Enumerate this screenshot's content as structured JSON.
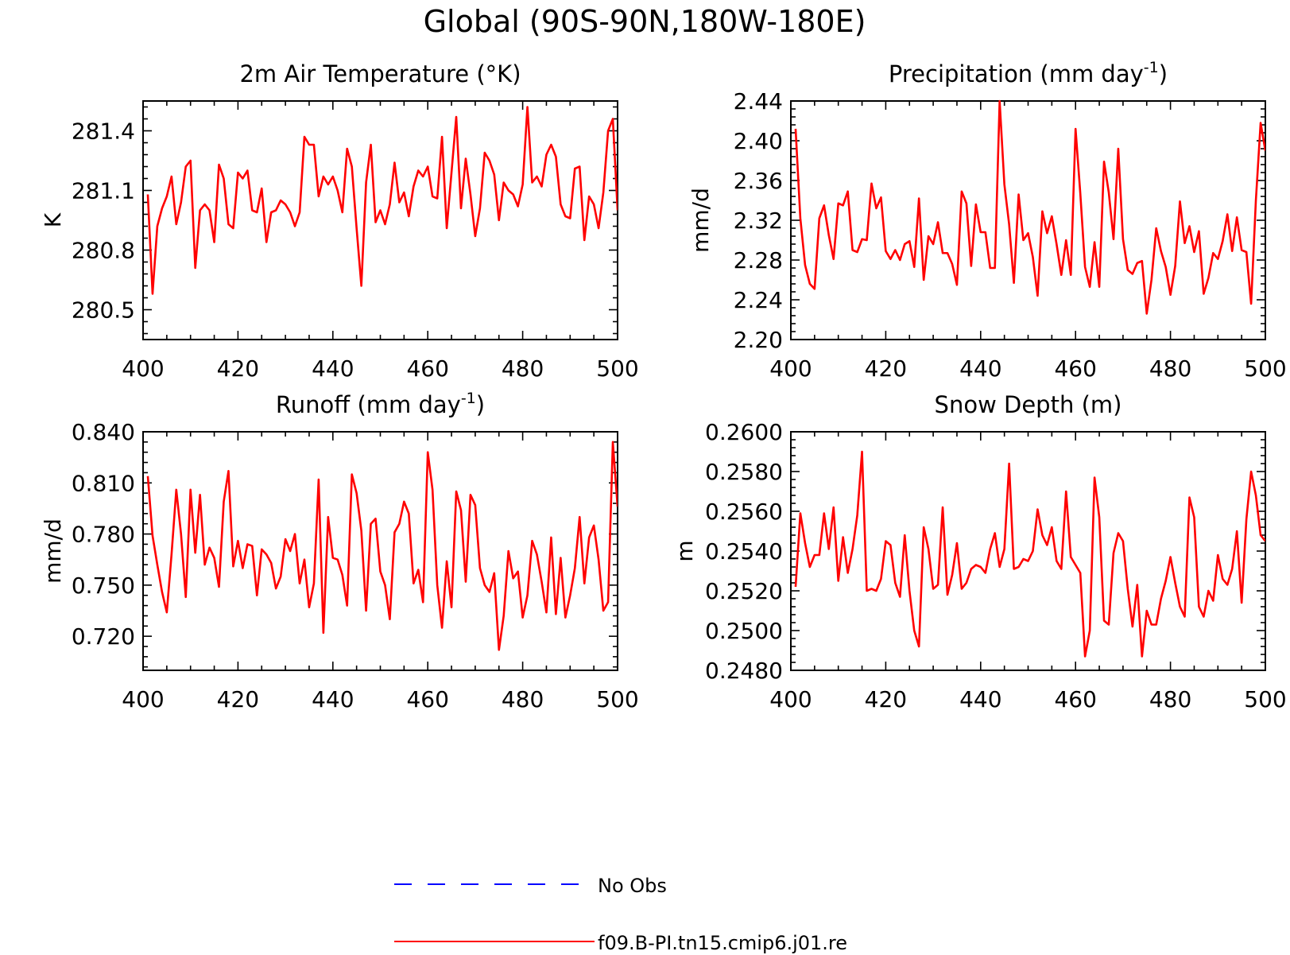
{
  "page": {
    "title": "Global (90S-90N,180W-180E)"
  },
  "legend": [
    {
      "label": "No Obs",
      "color": "#0000ff",
      "dash": true
    },
    {
      "label": "f09.B-PI.tn15.cmip6.j01.re",
      "color": "#ff0000",
      "dash": false
    }
  ],
  "colors": {
    "series": "#ff0000",
    "obs": "#0000ff",
    "axis": "#000000"
  },
  "chart_data": [
    {
      "type": "line",
      "title": "2m Air Temperature (°K)",
      "xlabel": "",
      "ylabel": "K",
      "xlim": [
        400,
        500
      ],
      "ylim": [
        280.35,
        281.55
      ],
      "xticks": [
        400,
        420,
        440,
        460,
        480,
        500
      ],
      "yticks": [
        280.5,
        280.8,
        281.1,
        281.4
      ],
      "ytick_labels": [
        "280.5",
        "280.8",
        "281.1",
        "281.4"
      ],
      "grid": false,
      "series": [
        {
          "name": "f09.B-PI.tn15.cmip6.j01.re",
          "x0": 401,
          "dx": 1,
          "values": [
            281.08,
            280.58,
            280.92,
            281.01,
            281.07,
            281.17,
            280.93,
            281.04,
            281.22,
            281.25,
            280.71,
            281.0,
            281.03,
            281.0,
            280.84,
            281.23,
            281.16,
            280.93,
            280.91,
            281.19,
            281.16,
            281.2,
            281.0,
            280.99,
            281.11,
            280.84,
            280.99,
            281.0,
            281.05,
            281.03,
            280.99,
            280.92,
            280.99,
            281.37,
            281.33,
            281.33,
            281.07,
            281.17,
            281.13,
            281.17,
            281.1,
            280.99,
            281.31,
            281.22,
            280.91,
            280.62,
            281.14,
            281.33,
            280.94,
            281.0,
            280.93,
            281.03,
            281.24,
            281.04,
            281.09,
            280.97,
            281.12,
            281.2,
            281.17,
            281.22,
            281.07,
            281.06,
            281.37,
            280.91,
            281.19,
            281.47,
            281.01,
            281.26,
            281.08,
            280.87,
            281.01,
            281.29,
            281.25,
            281.18,
            280.95,
            281.14,
            281.1,
            281.08,
            281.02,
            281.13,
            281.52,
            281.14,
            281.17,
            281.12,
            281.28,
            281.33,
            281.27,
            281.03,
            280.97,
            280.96,
            281.21,
            281.22,
            280.85,
            281.07,
            281.03,
            280.91,
            281.09,
            281.4,
            281.46,
            281.0
          ]
        }
      ]
    },
    {
      "type": "line",
      "title": "Precipitation (mm day",
      "title_sup": "-1",
      "title_close": ")",
      "xlabel": "",
      "ylabel": "mm/d",
      "xlim": [
        400,
        500
      ],
      "ylim": [
        2.2,
        2.44
      ],
      "xticks": [
        400,
        420,
        440,
        460,
        480,
        500
      ],
      "yticks": [
        2.2,
        2.24,
        2.28,
        2.32,
        2.36,
        2.4,
        2.44
      ],
      "ytick_labels": [
        "2.20",
        "2.24",
        "2.28",
        "2.32",
        "2.36",
        "2.40",
        "2.44"
      ],
      "grid": false,
      "series": [
        {
          "name": "f09.B-PI.tn15.cmip6.j01.re",
          "x0": 401,
          "dx": 1,
          "values": [
            2.412,
            2.322,
            2.275,
            2.256,
            2.251,
            2.322,
            2.335,
            2.305,
            2.281,
            2.337,
            2.335,
            2.349,
            2.29,
            2.288,
            2.301,
            2.3,
            2.357,
            2.332,
            2.343,
            2.289,
            2.281,
            2.29,
            2.28,
            2.296,
            2.299,
            2.273,
            2.342,
            2.26,
            2.304,
            2.296,
            2.318,
            2.287,
            2.287,
            2.276,
            2.255,
            2.349,
            2.337,
            2.274,
            2.336,
            2.308,
            2.308,
            2.272,
            2.272,
            2.44,
            2.356,
            2.316,
            2.257,
            2.346,
            2.3,
            2.307,
            2.283,
            2.244,
            2.329,
            2.307,
            2.324,
            2.296,
            2.265,
            2.3,
            2.265,
            2.412,
            2.347,
            2.273,
            2.253,
            2.298,
            2.253,
            2.379,
            2.348,
            2.301,
            2.392,
            2.301,
            2.27,
            2.266,
            2.277,
            2.279,
            2.226,
            2.26,
            2.312,
            2.289,
            2.273,
            2.245,
            2.274,
            2.339,
            2.297,
            2.314,
            2.288,
            2.309,
            2.246,
            2.262,
            2.287,
            2.281,
            2.299,
            2.326,
            2.289,
            2.323,
            2.29,
            2.288,
            2.236,
            2.34,
            2.418,
            2.39
          ]
        }
      ]
    },
    {
      "type": "line",
      "title": "Runoff (mm day",
      "title_sup": "-1",
      "title_close": ")",
      "xlabel": "",
      "ylabel": "mm/d",
      "xlim": [
        400,
        500
      ],
      "ylim": [
        0.7,
        0.84
      ],
      "xticks": [
        400,
        420,
        440,
        460,
        480,
        500
      ],
      "yticks": [
        0.72,
        0.75,
        0.78,
        0.81,
        0.84
      ],
      "ytick_labels": [
        "0.720",
        "0.750",
        "0.780",
        "0.810",
        "0.840"
      ],
      "grid": false,
      "series": [
        {
          "name": "f09.B-PI.tn15.cmip6.j01.re",
          "x0": 401,
          "dx": 1,
          "values": [
            0.814,
            0.779,
            0.762,
            0.746,
            0.734,
            0.768,
            0.806,
            0.78,
            0.743,
            0.806,
            0.769,
            0.803,
            0.762,
            0.772,
            0.766,
            0.749,
            0.799,
            0.817,
            0.761,
            0.776,
            0.76,
            0.774,
            0.773,
            0.744,
            0.771,
            0.768,
            0.763,
            0.748,
            0.755,
            0.777,
            0.77,
            0.78,
            0.751,
            0.765,
            0.737,
            0.751,
            0.812,
            0.722,
            0.79,
            0.766,
            0.765,
            0.756,
            0.738,
            0.815,
            0.804,
            0.782,
            0.735,
            0.786,
            0.789,
            0.758,
            0.75,
            0.73,
            0.781,
            0.786,
            0.799,
            0.792,
            0.751,
            0.759,
            0.74,
            0.828,
            0.806,
            0.75,
            0.725,
            0.764,
            0.737,
            0.805,
            0.794,
            0.752,
            0.803,
            0.797,
            0.76,
            0.75,
            0.746,
            0.757,
            0.712,
            0.732,
            0.77,
            0.754,
            0.758,
            0.731,
            0.744,
            0.776,
            0.768,
            0.752,
            0.734,
            0.778,
            0.733,
            0.766,
            0.731,
            0.744,
            0.76,
            0.79,
            0.751,
            0.778,
            0.785,
            0.765,
            0.735,
            0.74,
            0.834,
            0.796
          ]
        }
      ]
    },
    {
      "type": "line",
      "title": "Snow Depth (m)",
      "xlabel": "",
      "ylabel": "m",
      "xlim": [
        400,
        500
      ],
      "ylim": [
        0.248,
        0.26
      ],
      "xticks": [
        400,
        420,
        440,
        460,
        480,
        500
      ],
      "yticks": [
        0.248,
        0.25,
        0.252,
        0.254,
        0.256,
        0.258,
        0.26
      ],
      "ytick_labels": [
        "0.2480",
        "0.2500",
        "0.2520",
        "0.2540",
        "0.2560",
        "0.2580",
        "0.2600"
      ],
      "grid": false,
      "series": [
        {
          "name": "f09.B-PI.tn15.cmip6.j01.re",
          "x0": 401,
          "dx": 1,
          "values": [
            0.2522,
            0.2559,
            0.2544,
            0.2532,
            0.2538,
            0.2538,
            0.2559,
            0.2541,
            0.2562,
            0.2525,
            0.2547,
            0.2529,
            0.2541,
            0.2558,
            0.259,
            0.252,
            0.2521,
            0.252,
            0.2526,
            0.2545,
            0.2543,
            0.2524,
            0.2517,
            0.2548,
            0.252,
            0.25,
            0.2492,
            0.2552,
            0.2541,
            0.2521,
            0.2523,
            0.2562,
            0.2518,
            0.2528,
            0.2544,
            0.2521,
            0.2524,
            0.2531,
            0.2533,
            0.2532,
            0.2529,
            0.2541,
            0.2549,
            0.2532,
            0.2541,
            0.2584,
            0.2531,
            0.2532,
            0.2536,
            0.2535,
            0.254,
            0.2561,
            0.2548,
            0.2543,
            0.2552,
            0.2535,
            0.2531,
            0.257,
            0.2537,
            0.2533,
            0.2529,
            0.2487,
            0.25,
            0.2577,
            0.2557,
            0.2505,
            0.2503,
            0.2539,
            0.2549,
            0.2545,
            0.2521,
            0.2502,
            0.2523,
            0.2487,
            0.251,
            0.2503,
            0.2503,
            0.2516,
            0.2525,
            0.2537,
            0.2524,
            0.2512,
            0.2507,
            0.2567,
            0.2557,
            0.2512,
            0.2507,
            0.252,
            0.2515,
            0.2538,
            0.2526,
            0.2523,
            0.2531,
            0.255,
            0.2514,
            0.2556,
            0.258,
            0.2568,
            0.2548,
            0.2545
          ]
        }
      ]
    }
  ]
}
